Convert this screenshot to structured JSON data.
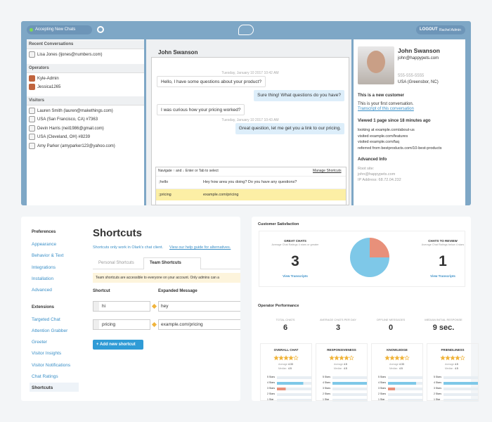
{
  "top": {
    "status": "Accepting New Chats",
    "logout": "LOGOUT",
    "user": "Rachel Admin",
    "sidebar": [
      {
        "title": "Recent Conversations",
        "items": [
          "Lisa Jones (ljones@numbers.com)"
        ]
      },
      {
        "title": "Operators",
        "items": [
          "Kyle-Admin",
          "Jessica1265"
        ]
      },
      {
        "title": "Visitors",
        "items": [
          "Lauren Smith (lauren@makethings.com)",
          "USA (San Francisco, CA) #7363",
          "Devin Harris (neil1986@gmail.com)",
          "USA (Cleveland, OH) #8239",
          "Amy Parker (amyparker123@yahoo.com)"
        ]
      }
    ],
    "chat": {
      "name": "John Swanson",
      "messages": [
        {
          "time": "Tuesday, January 10 2017 10:42 AM"
        },
        {
          "visitor": "Hello, I have some questions about your product?"
        },
        {
          "operator": "Sure thing! What questions do you have?"
        },
        {
          "visitor": "I was curious how your pricing worked?"
        },
        {
          "time": "Tuesday, January 10 2017 10:43 AM"
        },
        {
          "operator": "Great question, let me get you a link to our pricing."
        }
      ],
      "popup": {
        "hint": "Navigate ↑ and ↓  Enter or Tab to select",
        "manage": "Manage Shortcuts",
        "rows": [
          [
            ";hello",
            "Hey how area you doing? Do you have any questions?"
          ],
          [
            ";pricing",
            "example.com/pricing"
          ]
        ]
      }
    },
    "profile": {
      "name": "John Swanson",
      "email": "john@happypets.com",
      "phone": "555-555-5555",
      "location": "USA (Greensbor, NC)",
      "new": "This is a new customer",
      "first": "This is your first conversation.",
      "transcript": "Transcript of this conversation",
      "viewed": "Viewed 1 page since 18 minutes ago",
      "visits": [
        "looking at example.com/about-us",
        "visited example.com/features",
        "visited example.com/faq",
        "referred from bestproducts.com/10-best-products"
      ],
      "advanced": "Advanced Info",
      "advanced_lines": [
        "Root site:",
        "john@happypets.com",
        "IP Address: 68.72.04.232"
      ]
    }
  },
  "settings": {
    "nav": [
      {
        "title": "Preferences",
        "items": [
          "Appearance",
          "Behavior & Text",
          "Integrations",
          "Installation",
          "Advanced"
        ]
      },
      {
        "title": "Extensions",
        "items": [
          "Targeted Chat",
          "Attention Grabber",
          "Greeter",
          "Visitor Insights",
          "Visitor Notifications",
          "Chat Ratings",
          "Shortcuts"
        ]
      }
    ],
    "title": "Shortcuts",
    "subtitle": "Shortcuts only work in Olark's chat client.",
    "help_link": "View our help guide for alternatives.",
    "tabs": [
      "Personal Shortcuts",
      "Team Shortcuts"
    ],
    "notice": "Team shortcuts are accessible to everyone on your account. Only admins can a",
    "columns": [
      "Shortcut",
      "Expanded Message"
    ],
    "rows": [
      [
        "hi",
        "hey"
      ],
      [
        "pricing",
        "example.com/pricing"
      ]
    ],
    "button": "+ Add new shortcut"
  },
  "dashboard": {
    "title": "Customer Satisfaction",
    "great": {
      "title": "GREAT CHATS",
      "sub": "Average Chat Ratings 4 stars or greater",
      "value": 3,
      "link": "View Transcripts"
    },
    "review": {
      "title": "CHATS TO REVIEW",
      "sub": "Average Chat Ratings below 4 stars",
      "value": 1,
      "link": "View Transcripts"
    },
    "perf_title": "Operator Performance",
    "stats": [
      {
        "label": "TOTAL CHATS",
        "value": 6
      },
      {
        "label": "AVERAGE CHATS PER DAY",
        "value": 3
      },
      {
        "label": "OFFLINE MESSAGES",
        "value": 0
      },
      {
        "label": "MEDIAN INITIAL RESPONSE",
        "value": "9 sec."
      }
    ],
    "avg_label": "Average",
    "median_label": "Median",
    "star_labels": [
      "5 Stars",
      "4 Stars",
      "3 Stars",
      "2 Stars",
      "1 Star"
    ],
    "cards": [
      {
        "title": "OVERALL CHAT",
        "rating": 4,
        "average": 4.33,
        "median": 4.5,
        "counts": [
          0,
          3,
          1,
          0,
          0
        ]
      },
      {
        "title": "RESPONSIVENESS",
        "rating": 4,
        "average": 4.5,
        "median": 4.5,
        "counts": [
          0,
          5,
          0,
          0,
          0
        ]
      },
      {
        "title": "KNOWLEDGE",
        "rating": 4,
        "average": 4.33,
        "median": 4.5,
        "counts": [
          0,
          4,
          1,
          0,
          0
        ]
      },
      {
        "title": "FRIENDLINESS",
        "rating": 4,
        "average": 4.5,
        "median": 4.5,
        "counts": [
          0,
          4,
          0,
          0,
          0
        ]
      }
    ]
  }
}
